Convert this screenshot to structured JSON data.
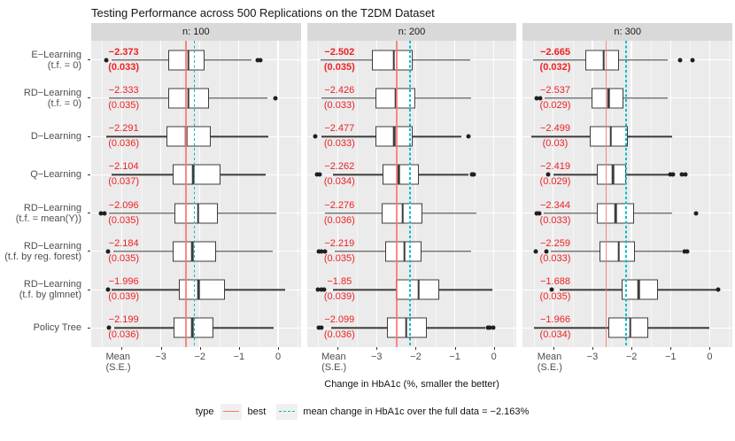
{
  "title": "Testing Performance across 500 Replications on the T2DM Dataset",
  "axis": {
    "x_label": "Change in HbA1c (%, smaller the better)",
    "mean_tick_lines": [
      "Mean",
      "(S.E.)"
    ],
    "x_tick_labels": [
      "−3",
      "−2",
      "−1",
      "0"
    ]
  },
  "legend": {
    "title": "type",
    "items": [
      {
        "label": "best",
        "line": "solid",
        "color": "#f8766d"
      },
      {
        "label": "mean change in HbA1c over the full data = −2.163%",
        "line": "dashed",
        "color": "#00bfc4"
      }
    ]
  },
  "colors": {
    "red_text": "#ed2124",
    "red_line": "#f8766d",
    "cyan_line": "#00bfc4",
    "panel_bg": "#ebebeb",
    "strip_bg": "#d9d9d9",
    "box_border": "#3c3c3c"
  },
  "chart_data": {
    "type": "boxplot",
    "title": "Testing Performance across 500 Replications on the T2DM Dataset",
    "xlabel": "Change in HbA1c (%, smaller the better)",
    "facet_labels": [
      "n: 100",
      "n: 200",
      "n: 300"
    ],
    "xlim": [
      -4.78,
      0.58
    ],
    "x_major_ticks": [
      -4,
      -3,
      -2,
      -1,
      0
    ],
    "x_minor_ticks": [
      -4.5,
      -3.5,
      -2.5,
      -1.5,
      -0.5,
      0.5
    ],
    "mean_label_x": -3.95,
    "reference_line": -2.163,
    "categories": [
      [
        "E−Learning",
        "(t.f. = 0)"
      ],
      [
        "RD−Learning",
        "(t.f. = 0)"
      ],
      [
        "D−Learning"
      ],
      [
        "Q−Learning"
      ],
      [
        "RD−Learning",
        "(t.f. = mean(Y))"
      ],
      [
        "RD−Learning",
        "(t.f. by reg. forest)"
      ],
      [
        "RD−Learning",
        "(t.f. by glmnet)"
      ],
      [
        "Policy Tree"
      ]
    ],
    "facets": [
      {
        "label": "n: 100",
        "best_line": -2.373,
        "rows": [
          {
            "mean": "−2.373",
            "se": "(0.033)",
            "bold": true,
            "lo": -4.27,
            "q1": -2.82,
            "med": -2.3,
            "q3": -1.89,
            "hi": -0.69,
            "out": [
              -4.4,
              -0.52,
              -0.45
            ]
          },
          {
            "mean": "−2.333",
            "se": "(0.035)",
            "bold": false,
            "lo": -4.32,
            "q1": -2.82,
            "med": -2.3,
            "q3": -1.77,
            "hi": -0.27,
            "out": [
              -0.06
            ]
          },
          {
            "mean": "−2.291",
            "se": "(0.036)",
            "bold": false,
            "lo": -4.39,
            "q1": -2.86,
            "med": -2.35,
            "q3": -1.73,
            "hi": -0.26,
            "out": []
          },
          {
            "mean": "−2.104",
            "se": "(0.037)",
            "bold": false,
            "lo": -4.25,
            "q1": -2.7,
            "med": -2.17,
            "q3": -1.47,
            "hi": -0.32,
            "out": []
          },
          {
            "mean": "−2.096",
            "se": "(0.035)",
            "bold": false,
            "lo": -4.32,
            "q1": -2.66,
            "med": -2.05,
            "q3": -1.54,
            "hi": -0.05,
            "out": [
              -4.52,
              -4.44
            ]
          },
          {
            "mean": "−2.184",
            "se": "(0.035)",
            "bold": false,
            "lo": -4.22,
            "q1": -2.7,
            "med": -2.19,
            "q3": -1.59,
            "hi": -0.14,
            "out": [
              -4.34
            ]
          },
          {
            "mean": "−1.996",
            "se": "(0.039)",
            "bold": false,
            "lo": -4.25,
            "q1": -2.54,
            "med": -2.04,
            "q3": -1.35,
            "hi": 0.19,
            "out": [
              -4.36
            ]
          },
          {
            "mean": "−2.199",
            "se": "(0.036)",
            "bold": false,
            "lo": -4.2,
            "q1": -2.68,
            "med": -2.19,
            "q3": -1.66,
            "hi": -0.12,
            "out": [
              -4.32
            ]
          }
        ]
      },
      {
        "label": "n: 200",
        "best_line": -2.502,
        "rows": [
          {
            "mean": "−2.502",
            "se": "(0.035)",
            "bold": true,
            "lo": -4.44,
            "q1": -3.12,
            "med": -2.56,
            "q3": -2.07,
            "hi": -0.6,
            "out": []
          },
          {
            "mean": "−2.426",
            "se": "(0.033)",
            "bold": false,
            "lo": -4.4,
            "q1": -3.03,
            "med": -2.51,
            "q3": -2.01,
            "hi": -0.59,
            "out": []
          },
          {
            "mean": "−2.477",
            "se": "(0.033)",
            "bold": false,
            "lo": -4.4,
            "q1": -3.03,
            "med": -2.55,
            "q3": -2.07,
            "hi": -0.84,
            "out": [
              -4.58,
              -0.64
            ]
          },
          {
            "mean": "−2.262",
            "se": "(0.034)",
            "bold": false,
            "lo": -4.11,
            "q1": -2.84,
            "med": -2.44,
            "q3": -1.93,
            "hi": -0.64,
            "out": [
              -4.53,
              -4.46,
              -0.57,
              -0.51
            ]
          },
          {
            "mean": "−2.276",
            "se": "(0.036)",
            "bold": false,
            "lo": -4.33,
            "q1": -2.86,
            "med": -2.33,
            "q3": -1.82,
            "hi": -0.44,
            "out": []
          },
          {
            "mean": "−2.219",
            "se": "(0.035)",
            "bold": false,
            "lo": -4.07,
            "q1": -2.78,
            "med": -2.29,
            "q3": -1.86,
            "hi": -0.58,
            "out": [
              -4.47,
              -4.4,
              -4.31
            ]
          },
          {
            "mean": "−1.85",
            "se": "(0.039)",
            "bold": false,
            "lo": -4.11,
            "q1": -2.51,
            "med": -1.93,
            "q3": -1.4,
            "hi": -0.03,
            "out": [
              -4.5,
              -4.42,
              -4.34
            ]
          },
          {
            "mean": "−2.099",
            "se": "(0.036)",
            "bold": false,
            "lo": -4.16,
            "q1": -2.73,
            "med": -2.24,
            "q3": -1.71,
            "hi": -0.23,
            "out": [
              -4.48,
              -4.4,
              -0.16,
              -0.1,
              -0.02
            ]
          }
        ]
      },
      {
        "label": "n: 300",
        "best_line": -2.665,
        "rows": [
          {
            "mean": "−2.665",
            "se": "(0.032)",
            "bold": true,
            "lo": -4.51,
            "q1": -3.17,
            "med": -2.71,
            "q3": -2.33,
            "hi": -1.07,
            "out": [
              -0.76,
              -0.44
            ]
          },
          {
            "mean": "−2.537",
            "se": "(0.029)",
            "bold": false,
            "lo": -4.22,
            "q1": -3.03,
            "med": -2.58,
            "q3": -2.2,
            "hi": -1.07,
            "out": [
              -4.42,
              -4.34
            ]
          },
          {
            "mean": "−2.499",
            "se": "(0.03)",
            "bold": false,
            "lo": -4.55,
            "q1": -3.07,
            "med": -2.53,
            "q3": -2.1,
            "hi": -0.96,
            "out": []
          },
          {
            "mean": "−2.419",
            "se": "(0.029)",
            "bold": false,
            "lo": -4.0,
            "q1": -2.88,
            "med": -2.47,
            "q3": -2.13,
            "hi": -1.04,
            "out": [
              -4.14,
              -1.0,
              -0.94,
              -0.7,
              -0.62
            ]
          },
          {
            "mean": "−2.344",
            "se": "(0.033)",
            "bold": false,
            "lo": -4.24,
            "q1": -2.89,
            "med": -2.4,
            "q3": -1.93,
            "hi": -0.96,
            "out": [
              -4.43,
              -4.35,
              -0.35
            ]
          },
          {
            "mean": "−2.259",
            "se": "(0.033)",
            "bold": false,
            "lo": -4.07,
            "q1": -2.81,
            "med": -2.33,
            "q3": -1.92,
            "hi": -0.7,
            "out": [
              -4.44,
              -4.18,
              -0.64,
              -0.58
            ]
          },
          {
            "mean": "−1.688",
            "se": "(0.035)",
            "bold": false,
            "lo": -3.84,
            "q1": -2.26,
            "med": -1.81,
            "q3": -1.33,
            "hi": 0.19,
            "out": [
              -4.03,
              0.22
            ]
          },
          {
            "mean": "−1.966",
            "se": "(0.034)",
            "bold": false,
            "lo": -4.5,
            "q1": -2.58,
            "med": -2.03,
            "q3": -1.58,
            "hi": 0.0,
            "out": []
          }
        ]
      }
    ]
  }
}
